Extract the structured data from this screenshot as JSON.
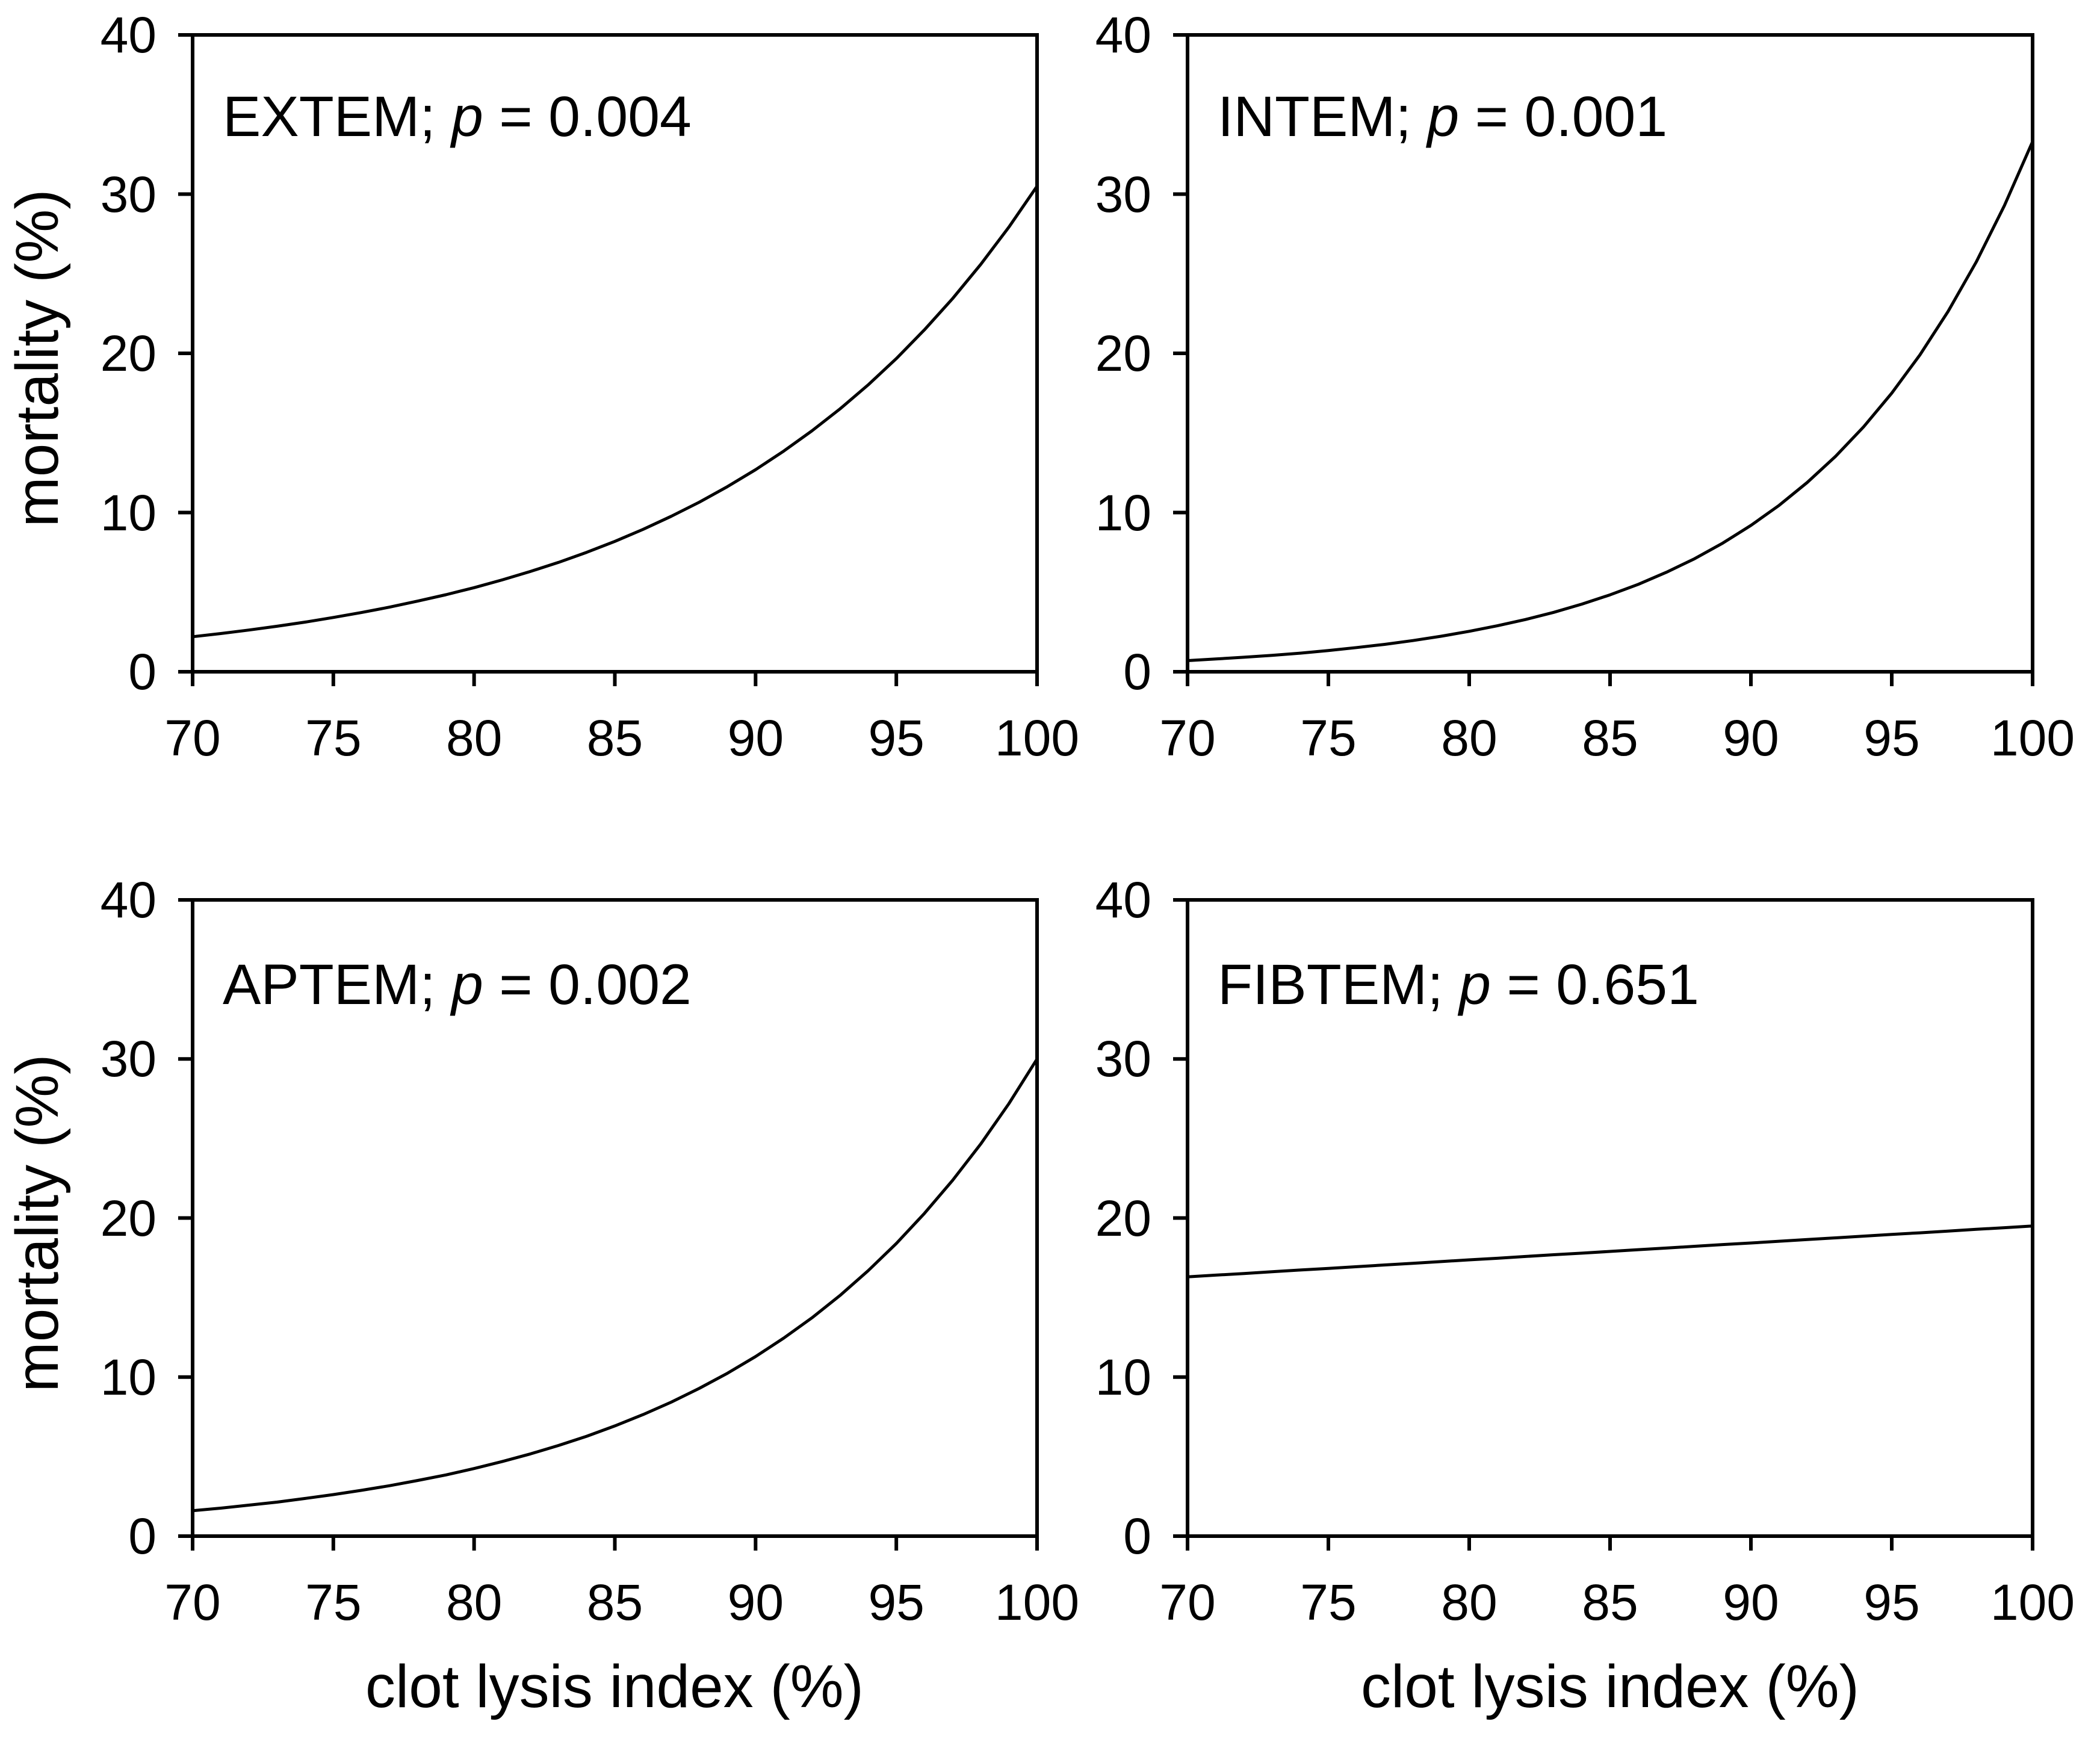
{
  "figure": {
    "x_label": "clot lysis index (%)",
    "y_label": "mortality (%)"
  },
  "panels": [
    {
      "name": "EXTEM",
      "title_prefix": "EXTEM; ",
      "p_italic": "p",
      "p_suffix": " = 0.004",
      "p_value": "0.004"
    },
    {
      "name": "INTEM",
      "title_prefix": "INTEM; ",
      "p_italic": "p",
      "p_suffix": " = 0.001",
      "p_value": "0.001"
    },
    {
      "name": "APTEM",
      "title_prefix": "APTEM; ",
      "p_italic": "p",
      "p_suffix": " = 0.002",
      "p_value": "0.002"
    },
    {
      "name": "FIBTEM",
      "title_prefix": "FIBTEM; ",
      "p_italic": "p",
      "p_suffix": " = 0.651",
      "p_value": "0.651"
    }
  ],
  "chart_data": {
    "type": "line",
    "layout": "2x2 panel grid",
    "xlabel": "clot lysis index (%)",
    "ylabel": "mortality (%)",
    "xlim": [
      70,
      100
    ],
    "ylim": [
      0,
      40
    ],
    "x_ticks": [
      70,
      75,
      80,
      85,
      90,
      95,
      100
    ],
    "y_ticks": [
      0,
      10,
      20,
      30,
      40
    ],
    "grid": false,
    "legend": "none",
    "line_color": "#000000",
    "x": [
      70,
      71,
      72,
      73,
      74,
      75,
      76,
      77,
      78,
      79,
      80,
      81,
      82,
      83,
      84,
      85,
      86,
      87,
      88,
      89,
      90,
      91,
      92,
      93,
      94,
      95,
      96,
      97,
      98,
      99,
      100
    ],
    "series": [
      {
        "name": "EXTEM",
        "p": "0.004",
        "values": [
          2.2,
          2.4,
          2.62,
          2.86,
          3.12,
          3.41,
          3.72,
          4.06,
          4.44,
          4.84,
          5.28,
          5.77,
          6.3,
          6.87,
          7.5,
          8.19,
          8.94,
          9.76,
          10.65,
          11.63,
          12.69,
          13.86,
          15.13,
          16.51,
          18.02,
          19.67,
          21.48,
          23.44,
          25.59,
          27.93,
          30.5
        ]
      },
      {
        "name": "INTEM",
        "p": "0.001",
        "values": [
          0.7,
          0.8,
          0.91,
          1.03,
          1.17,
          1.33,
          1.52,
          1.72,
          1.96,
          2.23,
          2.54,
          2.89,
          3.28,
          3.73,
          4.25,
          4.83,
          5.49,
          6.25,
          7.1,
          8.08,
          9.19,
          10.45,
          11.89,
          13.52,
          15.38,
          17.5,
          19.9,
          22.63,
          25.74,
          29.28,
          33.3
        ]
      },
      {
        "name": "APTEM",
        "p": "0.002",
        "values": [
          1.6,
          1.76,
          1.95,
          2.14,
          2.37,
          2.61,
          2.88,
          3.17,
          3.5,
          3.85,
          4.25,
          4.69,
          5.17,
          5.7,
          6.28,
          6.93,
          7.64,
          8.42,
          9.29,
          10.24,
          11.29,
          12.45,
          13.72,
          15.13,
          16.69,
          18.4,
          20.29,
          22.37,
          24.66,
          27.19,
          30.0
        ]
      },
      {
        "name": "FIBTEM",
        "p": "0.651",
        "values": [
          16.3,
          16.41,
          16.51,
          16.62,
          16.73,
          16.83,
          16.94,
          17.05,
          17.15,
          17.26,
          17.37,
          17.47,
          17.58,
          17.69,
          17.79,
          17.9,
          18.01,
          18.11,
          18.22,
          18.33,
          18.43,
          18.54,
          18.65,
          18.75,
          18.86,
          18.97,
          19.07,
          19.18,
          19.29,
          19.39,
          19.5
        ]
      }
    ]
  }
}
